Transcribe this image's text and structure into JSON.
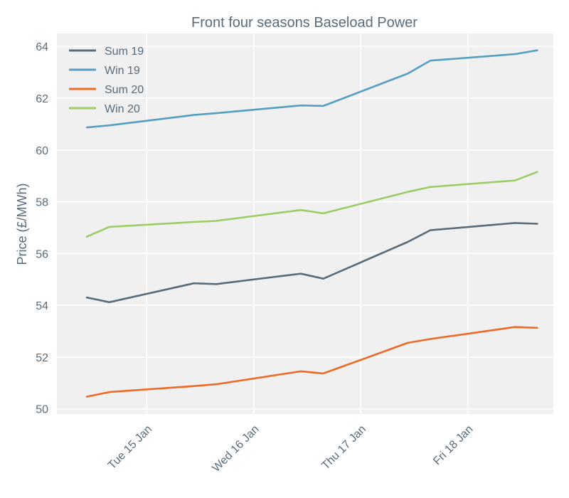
{
  "chart_data": {
    "type": "line",
    "title": "Front four seasons Baseload Power",
    "xlabel": "",
    "ylabel": "Price (£/MWh)",
    "ylim": [
      49.8,
      64.5
    ],
    "yticks": [
      50,
      52,
      54,
      56,
      58,
      60,
      62,
      64
    ],
    "xlim": [
      -0.28,
      4.36
    ],
    "xticks": [
      {
        "x": 0.56,
        "label": "Tue 15 Jan"
      },
      {
        "x": 1.56,
        "label": "Wed 16 Jan"
      },
      {
        "x": 2.56,
        "label": "Thu 17 Jan"
      },
      {
        "x": 3.56,
        "label": "Fri 18 Jan"
      }
    ],
    "x": [
      0,
      0.21,
      1.0,
      1.21,
      2.0,
      2.21,
      3.0,
      3.21,
      4.0,
      4.21
    ],
    "grid": true,
    "legend_position": "top-left",
    "series": [
      {
        "name": "Sum 19",
        "color": "#5a6b7a",
        "values": [
          54.3,
          54.12,
          54.85,
          54.82,
          55.22,
          55.03,
          56.45,
          56.9,
          57.18,
          57.15
        ]
      },
      {
        "name": "Win 19",
        "color": "#569fc2",
        "values": [
          60.87,
          60.95,
          61.35,
          61.42,
          61.72,
          61.7,
          62.95,
          63.45,
          63.7,
          63.85
        ]
      },
      {
        "name": "Sum 20",
        "color": "#ee6a27",
        "values": [
          50.47,
          50.65,
          50.88,
          50.95,
          51.45,
          51.37,
          52.55,
          52.7,
          53.16,
          53.13
        ]
      },
      {
        "name": "Win 20",
        "color": "#9ccc65",
        "values": [
          56.65,
          57.03,
          57.22,
          57.26,
          57.68,
          57.55,
          58.38,
          58.57,
          58.82,
          59.15
        ]
      }
    ]
  }
}
